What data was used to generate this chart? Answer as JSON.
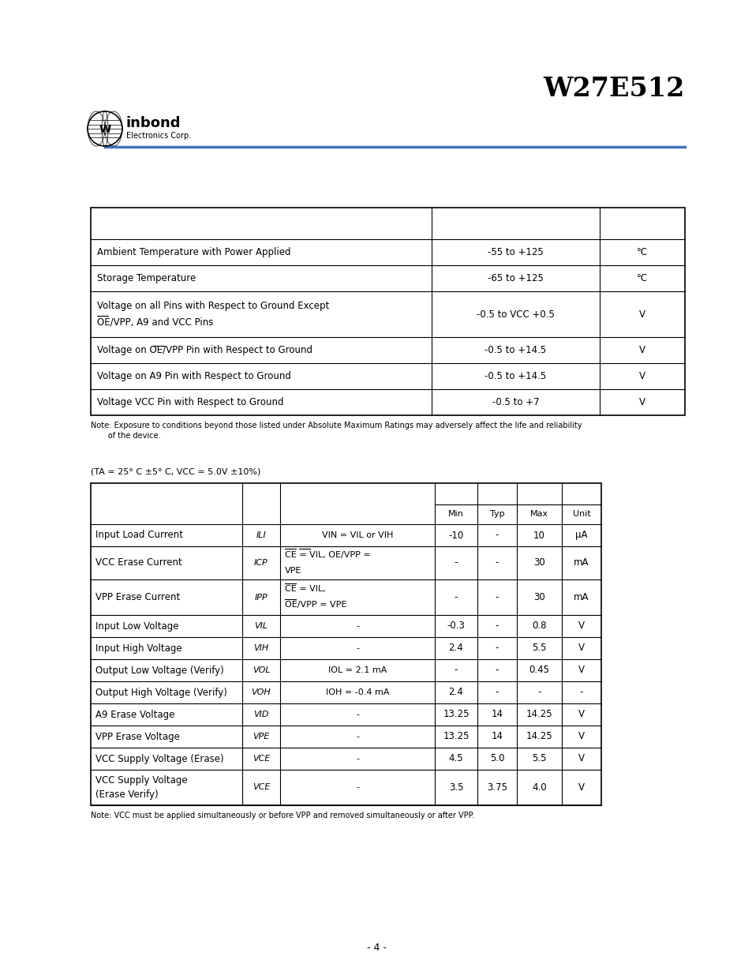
{
  "title": "W27E512",
  "header_line_color": "#4472C4",
  "bg": "#ffffff",
  "table1_note_line1": "Note: Exposure to conditions beyond those listed under Absolute Maximum Ratings may adversely affect the life and reliability",
  "table1_note_line2": "       of the device.",
  "table2_condition": "(TA = 25° C ±5° C, VCC = 5.0V ±10%)",
  "table2_note": "Note: VCC must be applied simultaneously or before VPP and removed simultaneously or after VPP.",
  "page_number": "- 4 -",
  "table1_rows": [
    [
      "Ambient Temperature with Power Applied",
      "-55 to +125",
      "°C"
    ],
    [
      "Storage Temperature",
      "-65 to +125",
      "°C"
    ],
    [
      "Voltage on all Pins with Respect to Ground Except\nOE/VPP, A9 and VCC Pins",
      "-0.5 to VCC +0.5",
      "V"
    ],
    [
      "Voltage on OE/VPP Pin with Respect to Ground",
      "-0.5 to +14.5",
      "V"
    ],
    [
      "Voltage on A9 Pin with Respect to Ground",
      "-0.5 to +14.5",
      "V"
    ],
    [
      "Voltage VCC Pin with Respect to Ground",
      "-0.5 to +7",
      "V"
    ]
  ],
  "table2_rows": [
    [
      "Input Load Current",
      "ILI",
      "VIN = VIL or VIH",
      "-10",
      "-",
      "10",
      "μA"
    ],
    [
      "VCC Erase Current",
      "ICP",
      "CE = VIL, OE/VPP =\nVPE",
      "-",
      "-",
      "30",
      "mA"
    ],
    [
      "VPP Erase Current",
      "IPP",
      "CE = VIL,\nOE/VPP = VPE",
      "-",
      "-",
      "30",
      "mA"
    ],
    [
      "Input Low Voltage",
      "VIL",
      "-",
      "-0.3",
      "-",
      "0.8",
      "V"
    ],
    [
      "Input High Voltage",
      "VIH",
      "-",
      "2.4",
      "-",
      "5.5",
      "V"
    ],
    [
      "Output Low Voltage (Verify)",
      "VOL",
      "IOL = 2.1 mA",
      "-",
      "-",
      "0.45",
      "V"
    ],
    [
      "Output High Voltage (Verify)",
      "VOH",
      "IOH = -0.4 mA",
      "2.4",
      "-",
      "-",
      "-"
    ],
    [
      "A9 Erase Voltage",
      "VID",
      "-",
      "13.25",
      "14",
      "14.25",
      "V"
    ],
    [
      "VPP Erase Voltage",
      "VPE",
      "-",
      "13.25",
      "14",
      "14.25",
      "V"
    ],
    [
      "VCC Supply Voltage (Erase)",
      "VCE",
      "-",
      "4.5",
      "5.0",
      "5.5",
      "V"
    ],
    [
      "VCC Supply Voltage\n(Erase Verify)",
      "VCE",
      "-",
      "3.5",
      "3.75",
      "4.0",
      "V"
    ]
  ]
}
